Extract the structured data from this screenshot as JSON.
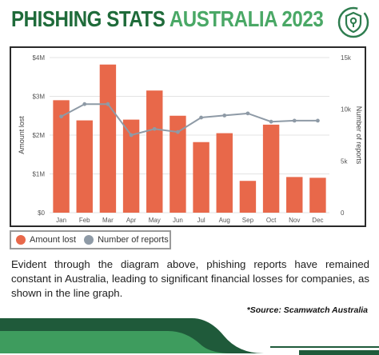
{
  "header": {
    "title_part1": "PHISHING STATS",
    "title_part2": "AUSTRALIA 2023"
  },
  "logo": {
    "icon": "shield-lock-icon",
    "color": "#2e7d4f"
  },
  "colors": {
    "bar": "#e8684a",
    "line": "#8e9aa6",
    "title_dark": "#1f6b3a",
    "title_light": "#4aa866",
    "footer_dark": "#1f5a3a",
    "footer_light": "#3e9c5e"
  },
  "chart_data": {
    "type": "bar+line",
    "categories": [
      "Jan",
      "Feb",
      "Mar",
      "Apr",
      "May",
      "Jun",
      "Jul",
      "Aug",
      "Sep",
      "Oct",
      "Nov",
      "Dec"
    ],
    "series": [
      {
        "name": "Amount lost",
        "type": "bar",
        "axis": "left",
        "values": [
          2.9,
          2.38,
          3.82,
          2.4,
          3.15,
          2.5,
          1.82,
          2.05,
          0.82,
          2.27,
          0.92,
          0.9
        ]
      },
      {
        "name": "Number of reports",
        "type": "line",
        "axis": "right",
        "values": [
          9300,
          10500,
          10500,
          7500,
          8100,
          7800,
          9200,
          9400,
          9600,
          8800,
          8900,
          8900
        ]
      }
    ],
    "y_left": {
      "label": "Amount lost",
      "range": [
        0,
        4
      ],
      "ticks": [
        0,
        1,
        2,
        3,
        4
      ],
      "tick_labels": [
        "$0",
        "$1M",
        "$2M",
        "$3M",
        "$4M"
      ]
    },
    "y_right": {
      "label": "Number of reports",
      "range": [
        0,
        15000
      ],
      "ticks": [
        0,
        5000,
        10000,
        15000
      ],
      "tick_labels": [
        "0",
        "5k",
        "10k",
        "15k"
      ]
    },
    "grid": true,
    "legend": "bottom-left"
  },
  "description": "Evident through the diagram above, phishing reports have remained constant in Australia, leading to significant financial losses for companies, as shown in the line graph.",
  "source": "*Source: Scamwatch Australia"
}
